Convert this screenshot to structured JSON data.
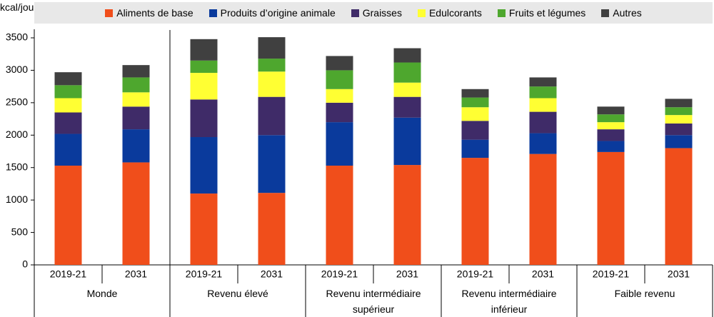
{
  "chart_data": {
    "type": "stacked_bar",
    "y_label": "kcal/jour/personne",
    "groups": [
      {
        "name": "Monde",
        "categories": [
          "2019-21",
          "2031"
        ]
      },
      {
        "name": "Revenu élevé",
        "categories": [
          "2019-21",
          "2031"
        ]
      },
      {
        "name": "Revenu intermédiaire supérieur",
        "categories": [
          "2019-21",
          "2031"
        ]
      },
      {
        "name": "Revenu intermédiaire inférieur",
        "categories": [
          "2019-21",
          "2031"
        ]
      },
      {
        "name": "Faible revenu",
        "categories": [
          "2019-21",
          "2031"
        ]
      }
    ],
    "series": [
      {
        "name": "Aliments de base",
        "color": "#f04e1b",
        "values": [
          1530,
          1580,
          1100,
          1110,
          1530,
          1540,
          1650,
          1710,
          1740,
          1800
        ]
      },
      {
        "name": "Produits d’origine animale",
        "color": "#0a3a9c",
        "values": [
          490,
          510,
          870,
          890,
          670,
          730,
          280,
          320,
          170,
          200
        ]
      },
      {
        "name": "Graisses",
        "color": "#3f2b68",
        "values": [
          330,
          350,
          580,
          590,
          300,
          320,
          290,
          330,
          180,
          180
        ]
      },
      {
        "name": "Edulcorants",
        "color": "#ffff33",
        "values": [
          220,
          220,
          410,
          390,
          210,
          220,
          210,
          210,
          110,
          130
        ]
      },
      {
        "name": "Fruits et légumes",
        "color": "#4ea72e",
        "values": [
          200,
          230,
          190,
          200,
          290,
          310,
          150,
          180,
          120,
          120
        ]
      },
      {
        "name": "Autres",
        "color": "#404040",
        "values": [
          200,
          190,
          330,
          330,
          220,
          220,
          130,
          140,
          120,
          130
        ]
      }
    ],
    "ylim": [
      0,
      3500
    ],
    "yticks": [
      0,
      500,
      1000,
      1500,
      2000,
      2500,
      3000,
      3500
    ]
  }
}
